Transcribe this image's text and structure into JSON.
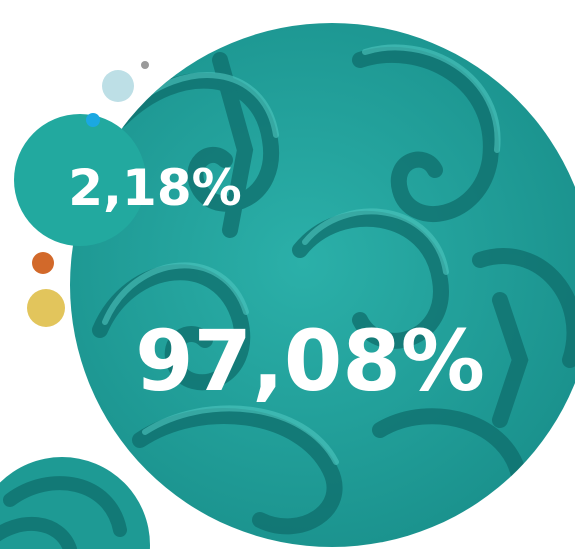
{
  "percentages": {
    "small": "2,18%",
    "large": "97,08%"
  }
}
